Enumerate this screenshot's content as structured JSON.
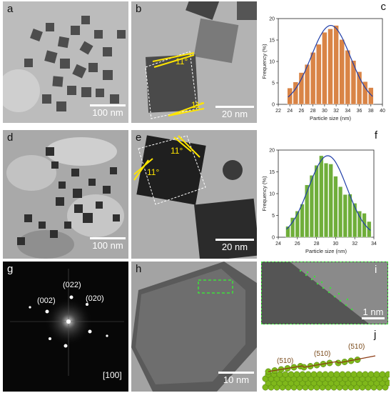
{
  "panels": {
    "a": {
      "label": "a",
      "scale": "100 nm"
    },
    "b": {
      "label": "b",
      "scale": "20 nm",
      "angles": [
        "11°",
        "11°"
      ]
    },
    "c": {
      "label": "c"
    },
    "d": {
      "label": "d",
      "scale": "100 nm"
    },
    "e": {
      "label": "e",
      "scale": "20 nm",
      "angles": [
        "11°",
        "11°"
      ]
    },
    "f": {
      "label": "f"
    },
    "g": {
      "label": "g",
      "zone": "[100]",
      "spots": [
        "(002)",
        "(022)",
        "(020)"
      ]
    },
    "h": {
      "label": "h",
      "scale": "10 nm"
    },
    "i": {
      "label": "i",
      "scale": "1 nm"
    },
    "j": {
      "label": "j",
      "facets": [
        "(510)",
        "(510)",
        "(510)"
      ]
    }
  },
  "colors": {
    "bar_c": "#d98446",
    "bar_f": "#6fae3a",
    "fit": "#1f3da8",
    "annot": "#ffe600",
    "dash_green": "#3ee03a",
    "atom": "#7fb81b",
    "bond": "#8b3a12"
  },
  "chart_data": [
    {
      "type": "bar",
      "panel": "c",
      "xlabel": "Particle size (nm)",
      "ylabel": "Frequency (%)",
      "xlim": [
        22,
        40
      ],
      "ylim": [
        0,
        20
      ],
      "xticks": [
        22,
        24,
        26,
        28,
        30,
        32,
        34,
        36,
        38,
        40
      ],
      "yticks": [
        0,
        5,
        10,
        15,
        20
      ],
      "x": [
        24,
        25,
        26,
        27,
        28,
        29,
        30,
        31,
        32,
        33,
        34,
        35,
        36,
        37,
        38
      ],
      "values": [
        3.8,
        5.2,
        7.4,
        9.3,
        12.1,
        14.0,
        16.8,
        17.6,
        18.4,
        15.1,
        12.6,
        10.2,
        7.6,
        5.3,
        3.9
      ],
      "fit": "gaussian"
    },
    {
      "type": "bar",
      "panel": "f",
      "xlabel": "Particle size (nm)",
      "ylabel": "Frequency (%)",
      "xlim": [
        24,
        34
      ],
      "ylim": [
        0,
        20
      ],
      "xticks": [
        24,
        26,
        28,
        30,
        32,
        34
      ],
      "yticks": [
        0,
        5,
        10,
        15,
        20
      ],
      "x": [
        25,
        25.5,
        26,
        26.5,
        27,
        27.5,
        28,
        28.5,
        29,
        29.5,
        30,
        30.5,
        31,
        31.5,
        32,
        32.5,
        33,
        33.5
      ],
      "values": [
        2.5,
        4.5,
        6.0,
        7.6,
        12.0,
        14.2,
        16.5,
        18.7,
        17.0,
        16.8,
        14.0,
        11.6,
        9.8,
        9.9,
        7.8,
        6.0,
        5.5,
        3.6
      ],
      "fit": "gaussian"
    }
  ]
}
